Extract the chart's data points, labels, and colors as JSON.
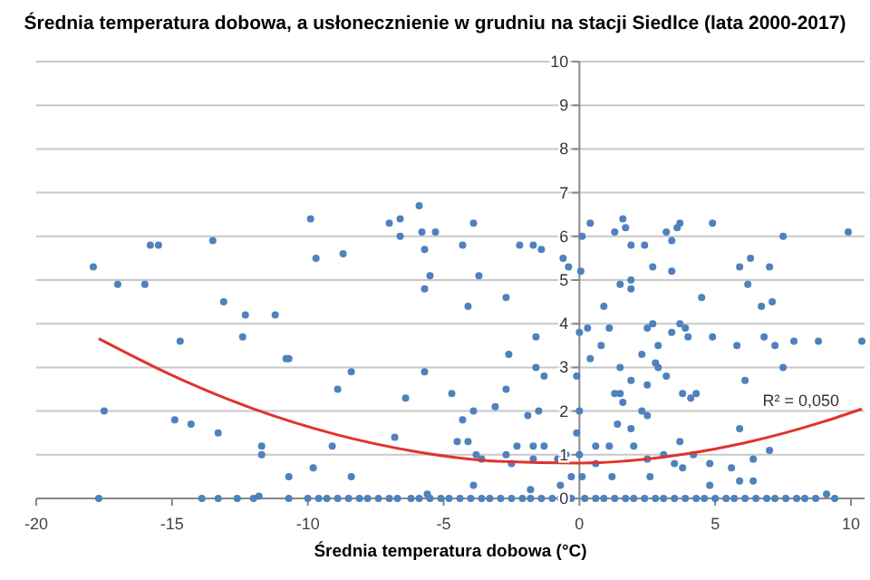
{
  "chart_data": {
    "type": "scatter",
    "title": "Średnia temperatura dobowa, a usłonecznienie w grudniu na stacji Siedlce (lata 2000-2017)",
    "xlabel": "Średnia temperatura dobowa (°C)",
    "xlim": [
      -20,
      10.5
    ],
    "xticks": [
      -20,
      -15,
      -10,
      -5,
      0,
      5,
      10
    ],
    "ylim": [
      0,
      10
    ],
    "yticks": [
      0,
      1,
      2,
      3,
      4,
      5,
      6,
      7,
      8,
      9,
      10
    ],
    "grid": "y",
    "annotations": [
      "R² = 0,050"
    ],
    "series": [
      {
        "marker": "circle",
        "color": "#4f81bd",
        "x": [
          -17.9,
          -17.0,
          -16.0,
          -15.8,
          -15.5,
          -13.5,
          -13.1,
          -12.3,
          -11.2,
          -14.7,
          -12.4,
          -10.8,
          -17.5,
          -14.9,
          -14.3,
          -13.3,
          -11.7,
          -11.7,
          -10.7,
          -17.7,
          -13.9,
          -13.3,
          -12.6,
          -12.0,
          -11.8,
          -10.7,
          -9.9,
          -9.7,
          -8.7,
          -7.0,
          -6.6,
          -6.6,
          -5.9,
          -5.8,
          -5.3,
          -5.7,
          -5.5,
          -5.7,
          -4.3,
          -3.9,
          -3.7,
          -4.1,
          -2.7,
          -2.2,
          -1.7,
          -1.4,
          -0.6,
          -0.4,
          0.1,
          0.05,
          -10.7,
          -8.4,
          -5.7,
          -8.9,
          -6.4,
          -4.7,
          -2.6,
          -2.7,
          -1.6,
          -1.6,
          -1.3,
          0.3,
          0.0,
          -0.1,
          -9.1,
          -6.8,
          -4.3,
          -3.9,
          -4.5,
          -4.1,
          -3.1,
          -1.9,
          -1.5,
          -2.3,
          -1.7,
          -1.3,
          -3.8,
          -3.6,
          -2.7,
          -2.5,
          -1.7,
          -0.8,
          -0.5,
          0.0,
          -0.1,
          0.0,
          -9.8,
          -8.4,
          -5.6,
          -3.9,
          -1.8,
          -0.7,
          -0.3,
          0.1,
          0.4,
          1.6,
          1.7,
          1.3,
          1.9,
          2.4,
          1.5,
          1.9,
          1.9,
          2.7,
          3.2,
          3.4,
          3.4,
          3.6,
          3.7,
          4.9,
          4.5,
          0.9,
          1.1,
          0.8,
          0.4,
          2.7,
          2.5,
          3.7,
          3.9,
          3.4,
          2.9,
          2.3,
          2.8,
          2.9,
          1.5,
          1.9,
          2.5,
          3.2,
          4.0,
          4.9,
          1.3,
          1.5,
          1.6,
          2.3,
          2.5,
          3.8,
          4.1,
          4.3,
          1.4,
          1.9,
          2.0,
          1.1,
          0.6,
          3.7,
          4.2,
          3.1,
          2.5,
          3.5,
          3.8,
          0.6,
          1.2,
          2.6,
          4.8,
          4.8,
          5.8,
          6.1,
          5.9,
          5.9,
          6.3,
          6.2,
          6.7,
          7.1,
          7.0,
          6.8,
          7.2,
          7.5,
          7.5,
          7.9,
          8.8,
          9.9,
          10.4,
          7.0,
          6.4,
          5.6,
          6.4,
          5.9,
          9.1,
          -10.0,
          -9.6,
          -9.3,
          -8.9,
          -8.5,
          -8.1,
          -7.8,
          -7.4,
          -7.0,
          -6.7,
          -6.2,
          -5.9,
          -5.5,
          -5.1,
          -4.8,
          -4.4,
          -4.0,
          -3.6,
          -3.3,
          -2.9,
          -2.5,
          -2.1,
          -1.8,
          -1.4,
          -1.0,
          -0.7,
          -0.3,
          0.2,
          0.6,
          0.9,
          1.3,
          1.7,
          2.0,
          2.4,
          2.8,
          3.1,
          3.5,
          3.9,
          4.3,
          4.6,
          5.0,
          5.4,
          5.7,
          6.1,
          6.5,
          6.9,
          7.2,
          7.6,
          8.0,
          8.3,
          8.7,
          9.4
        ],
        "values": [
          5.3,
          4.9,
          4.9,
          5.8,
          5.8,
          5.9,
          4.5,
          4.2,
          4.2,
          3.6,
          3.7,
          3.2,
          2.0,
          1.8,
          1.7,
          1.5,
          1.2,
          1.0,
          0.5,
          0,
          0,
          0,
          0,
          0,
          0.05,
          0,
          6.4,
          5.5,
          5.6,
          6.3,
          6.4,
          6.0,
          6.7,
          6.1,
          6.1,
          5.7,
          5.1,
          4.8,
          5.8,
          6.3,
          5.1,
          4.4,
          4.6,
          5.8,
          5.8,
          5.7,
          5.5,
          5.3,
          6.0,
          5.2,
          3.2,
          2.9,
          2.9,
          2.5,
          2.3,
          2.4,
          3.3,
          2.5,
          3.7,
          3.0,
          2.8,
          3.9,
          3.8,
          2.8,
          1.2,
          1.4,
          1.8,
          2.0,
          1.3,
          1.3,
          2.1,
          1.9,
          2.0,
          1.2,
          1.2,
          1.2,
          1.0,
          0.9,
          1.0,
          0.8,
          0.9,
          0.9,
          1.0,
          1.0,
          1.5,
          2.0,
          0.7,
          0.5,
          0.1,
          0.3,
          0.2,
          0.3,
          0.5,
          0.5,
          6.3,
          6.4,
          6.2,
          6.1,
          5.8,
          5.8,
          4.9,
          5.0,
          4.8,
          5.3,
          6.1,
          5.9,
          5.2,
          6.2,
          6.3,
          6.3,
          4.6,
          4.4,
          3.9,
          3.5,
          3.2,
          4.0,
          3.9,
          4.0,
          3.9,
          3.8,
          3.5,
          3.3,
          3.1,
          3.0,
          3.0,
          2.7,
          2.6,
          2.8,
          3.7,
          3.7,
          2.4,
          2.4,
          2.2,
          2.0,
          1.9,
          2.4,
          2.3,
          2.4,
          1.7,
          1.6,
          1.2,
          1.2,
          1.2,
          1.3,
          1.0,
          1.0,
          0.9,
          0.8,
          0.7,
          0.8,
          0.5,
          0.5,
          0.8,
          0.3,
          3.5,
          2.7,
          1.6,
          5.3,
          5.5,
          4.9,
          4.4,
          4.5,
          5.3,
          3.7,
          3.5,
          3.0,
          6.0,
          3.6,
          3.6,
          6.1,
          3.6,
          1.1,
          0.9,
          0.7,
          0.4,
          0.4,
          0.1,
          0,
          0,
          0,
          0,
          0,
          0,
          0,
          0,
          0,
          0,
          0,
          0,
          0,
          0,
          0,
          0,
          0,
          0,
          0,
          0,
          0,
          0,
          0,
          0,
          0,
          0,
          0,
          0,
          0,
          0,
          0,
          0,
          0,
          0,
          0,
          0,
          0,
          0,
          0,
          0,
          0,
          0,
          0,
          0,
          0,
          0,
          0,
          0,
          0,
          0,
          0,
          0
        ]
      },
      {
        "type": "line",
        "marker": "none",
        "color": "#e0332d",
        "x": [
          -17.7,
          -15,
          -12,
          -9,
          -6,
          -3,
          0,
          3,
          6,
          9,
          10.4
        ],
        "values": [
          3.66,
          2.82,
          2.05,
          1.47,
          1.07,
          0.85,
          0.81,
          0.94,
          1.26,
          1.76,
          2.05
        ]
      }
    ]
  }
}
